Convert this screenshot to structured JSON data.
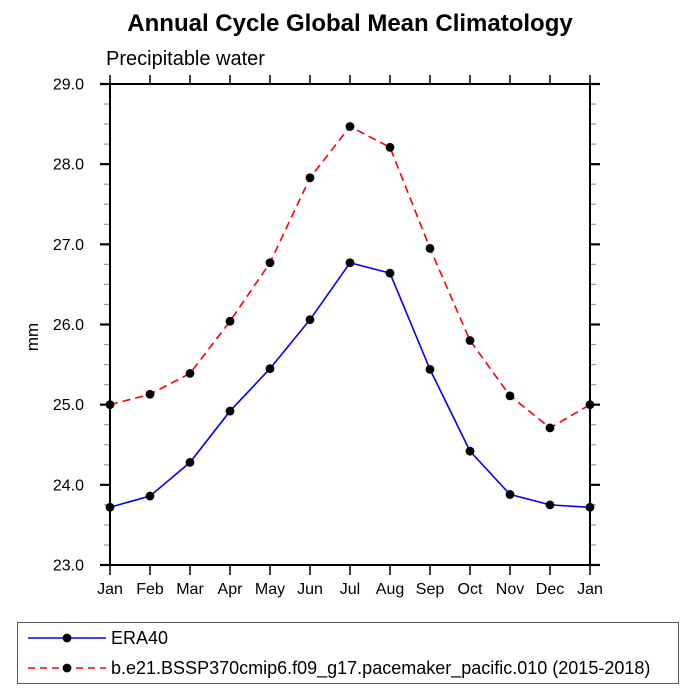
{
  "title": "Annual Cycle Global Mean Climatology",
  "subtitle": "Precipitable water",
  "chart_data": {
    "type": "line",
    "title": "Annual Cycle Global Mean Climatology",
    "subtitle": "Precipitable water",
    "xlabel": "",
    "ylabel": "mm",
    "categories": [
      "Jan",
      "Feb",
      "Mar",
      "Apr",
      "May",
      "Jun",
      "Jul",
      "Aug",
      "Sep",
      "Oct",
      "Nov",
      "Dec",
      "Jan"
    ],
    "ylim": [
      23.0,
      29.0
    ],
    "y_major_step": 1.0,
    "y_minor_step": 0.25,
    "y_tick_labels": [
      "23.0",
      "24.0",
      "25.0",
      "26.0",
      "27.0",
      "28.0",
      "29.0"
    ],
    "grid": false,
    "legend_position": "bottom-left-box",
    "marker": {
      "shape": "circle",
      "color": "#000000",
      "radius": 4.4
    },
    "series": [
      {
        "name": "ERA40",
        "color": "#0000ff",
        "line_style": "solid",
        "values": [
          23.72,
          23.86,
          24.28,
          24.92,
          25.45,
          26.06,
          26.77,
          26.64,
          25.44,
          24.42,
          23.88,
          23.75,
          23.72
        ]
      },
      {
        "name": "b.e21.BSSP370cmip6.f09_g17.pacemaker_pacific.010 (2015-2018)",
        "color": "#ff0000",
        "line_style": "dashed",
        "values": [
          25.0,
          25.13,
          25.39,
          26.04,
          26.77,
          27.83,
          28.47,
          28.21,
          26.95,
          25.8,
          25.11,
          24.71,
          25.0
        ]
      }
    ]
  }
}
